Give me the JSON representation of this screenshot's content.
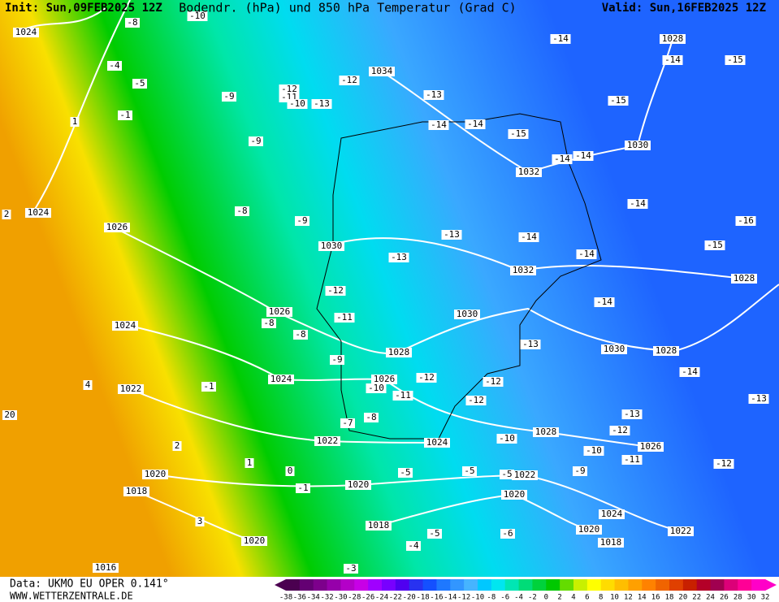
{
  "header": {
    "init": "Init: Sun,09FEB2025 12Z",
    "title": "Bodendr. (hPa) und 850 hPa Temperatur (Grad C)",
    "valid": "Valid: Sun,16FEB2025 12Z"
  },
  "footer": {
    "source": "Data: UKMO EU OPER 0.141°",
    "site": "WWW.WETTERZENTRALE.DE"
  },
  "isobar_labels": [
    "1024",
    "1034",
    "1028",
    "1030",
    "1032",
    "1024",
    "1026",
    "1030",
    "1032",
    "1028",
    "1026",
    "1024",
    "1030",
    "1028",
    "1030",
    "1028",
    "1024",
    "1026",
    "1022",
    "1022",
    "1024",
    "1028",
    "1026",
    "1020",
    "1022",
    "1018",
    "1020",
    "1020",
    "1018",
    "1024",
    "1022",
    "1020",
    "1020",
    "1018",
    "1016"
  ],
  "temperature_labels": [
    "-8",
    "-10",
    "-4",
    "-5",
    "-1",
    "1",
    "-9",
    "-12",
    "-11",
    "-10",
    "-13",
    "-12",
    "-13",
    "-14",
    "-14",
    "-15",
    "-14",
    "-14",
    "-15",
    "-15",
    "-9",
    "-14",
    "-14",
    "-14",
    "-16",
    "-15",
    "-8",
    "-9",
    "-13",
    "-14",
    "-13",
    "-14",
    "-12",
    "-11",
    "-8",
    "-8",
    "-14",
    "-13",
    "-9",
    "-12",
    "-12",
    "-10",
    "-11",
    "-12",
    "-14",
    "-13",
    "-1",
    "4",
    "2",
    "-7",
    "-8",
    "-13",
    "-12",
    "-10",
    "-10",
    "-11",
    "-12",
    "-9",
    "-5",
    "-5",
    "-5",
    "1",
    "3",
    "-1",
    "-5",
    "-4",
    "-3",
    "-6",
    "0",
    "20",
    "2"
  ],
  "colorbar": {
    "ticks": [
      -38,
      -36,
      -34,
      -32,
      -30,
      -28,
      -26,
      -24,
      -22,
      -20,
      -18,
      -16,
      -14,
      -12,
      -10,
      -8,
      -6,
      -4,
      -2,
      0,
      2,
      4,
      6,
      8,
      10,
      12,
      14,
      16,
      18,
      20,
      22,
      24,
      26,
      28,
      30,
      32
    ],
    "colors": [
      "#4b0050",
      "#640073",
      "#7d008c",
      "#9600aa",
      "#b400c8",
      "#c800e6",
      "#a000ff",
      "#7800ff",
      "#5000f0",
      "#2832f0",
      "#1450ff",
      "#1e78ff",
      "#3296ff",
      "#46b4ff",
      "#00c8ff",
      "#00e6f0",
      "#00e6b4",
      "#00dc78",
      "#00d23c",
      "#00c800",
      "#64dc00",
      "#c8f000",
      "#ffff00",
      "#ffdc00",
      "#ffbe00",
      "#ffa000",
      "#ff8200",
      "#f06400",
      "#e04000",
      "#c82000",
      "#b40028",
      "#a00050",
      "#dc0078",
      "#ff0096",
      "#ff00c8"
    ]
  }
}
